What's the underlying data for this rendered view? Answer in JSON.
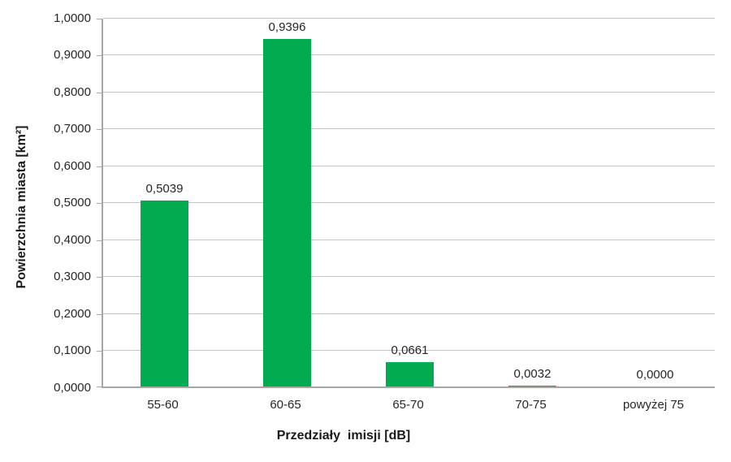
{
  "chart_data": {
    "type": "bar",
    "title": "",
    "categories": [
      "55-60",
      "60-65",
      "65-70",
      "70-75",
      "powyżej 75"
    ],
    "values": [
      0.5039,
      0.9396,
      0.0661,
      0.0032,
      0.0
    ],
    "value_labels": [
      "0,5039",
      "0,9396",
      "0,0661",
      "0,0032",
      "0,0000"
    ],
    "xlabel": "Przedziały  imisji [dB]",
    "ylabel": "Powierzchnia miasta [km²]",
    "ylim": [
      0,
      1.0
    ],
    "ytick_step": 0.1,
    "ytick_labels": [
      "0,0000",
      "0,1000",
      "0,2000",
      "0,3000",
      "0,4000",
      "0,5000",
      "0,6000",
      "0,7000",
      "0,8000",
      "0,9000",
      "1,0000"
    ],
    "grid": true,
    "legend_position": "none",
    "colors": {
      "bar": "#00ac4f",
      "gridline": "#c6c6c6",
      "axis": "#a6a6a6",
      "text": "#262626"
    }
  }
}
